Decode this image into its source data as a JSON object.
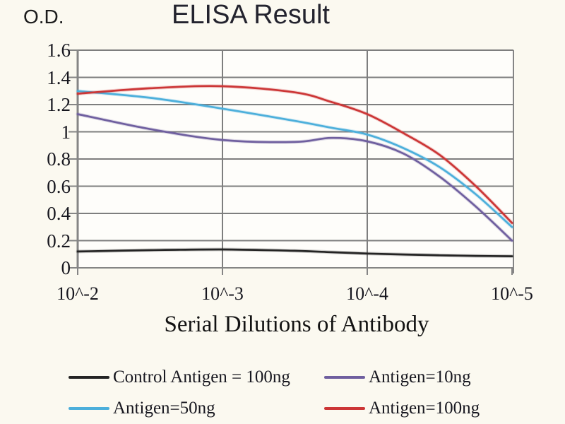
{
  "figure": {
    "title": "ELISA Result",
    "y_axis_label": "O.D.",
    "x_axis_label": "Serial Dilutions of Antibody"
  },
  "colors": {
    "background": "#fbf9f0",
    "plot_fill": "#fefdfa",
    "gridline": "#7e7e7e",
    "axis": "#858585",
    "text": "#1c1c24",
    "series_control": "#242424",
    "series_antigen_10ng": "#6f5f9f",
    "series_antigen_50ng": "#4cafdb",
    "series_antigen_100ng": "#cc3636"
  },
  "chart_data": {
    "type": "line",
    "title": "ELISA Result",
    "xlabel": "Serial Dilutions of Antibody",
    "ylabel": "O.D.",
    "x_tick_labels": [
      "10^-2",
      "10^-3",
      "10^-4",
      "10^-5"
    ],
    "x_exponents": [
      -2,
      -2.5,
      -3,
      -3.5,
      -3.75,
      -4,
      -4.25,
      -4.5,
      -4.75,
      -5
    ],
    "y_ticks": [
      0,
      0.2,
      0.4,
      0.6,
      0.8,
      1,
      1.2,
      1.4,
      1.6
    ],
    "y_tick_labels": [
      "0",
      "0.2",
      "0.4",
      "0.6",
      "0.8",
      "1",
      "1.2",
      "1.4",
      "1.6"
    ],
    "ylim": [
      0,
      1.6
    ],
    "grid": true,
    "legend_position": "below",
    "series": [
      {
        "name": "Control Antigen = 100ng",
        "color": "#242424",
        "values": [
          0.12,
          0.13,
          0.135,
          0.125,
          0.115,
          0.105,
          0.098,
          0.092,
          0.088,
          0.085
        ]
      },
      {
        "name": "Antigen=10ng",
        "color": "#6f5f9f",
        "values": [
          1.13,
          1.02,
          0.94,
          0.925,
          0.955,
          0.93,
          0.84,
          0.67,
          0.45,
          0.2
        ]
      },
      {
        "name": "Antigen=50ng",
        "color": "#4cafdb",
        "values": [
          1.3,
          1.25,
          1.17,
          1.08,
          1.03,
          0.98,
          0.88,
          0.74,
          0.54,
          0.3
        ]
      },
      {
        "name": "Antigen=100ng",
        "color": "#cc3636",
        "values": [
          1.28,
          1.32,
          1.335,
          1.29,
          1.22,
          1.13,
          0.99,
          0.83,
          0.6,
          0.33
        ]
      }
    ]
  }
}
